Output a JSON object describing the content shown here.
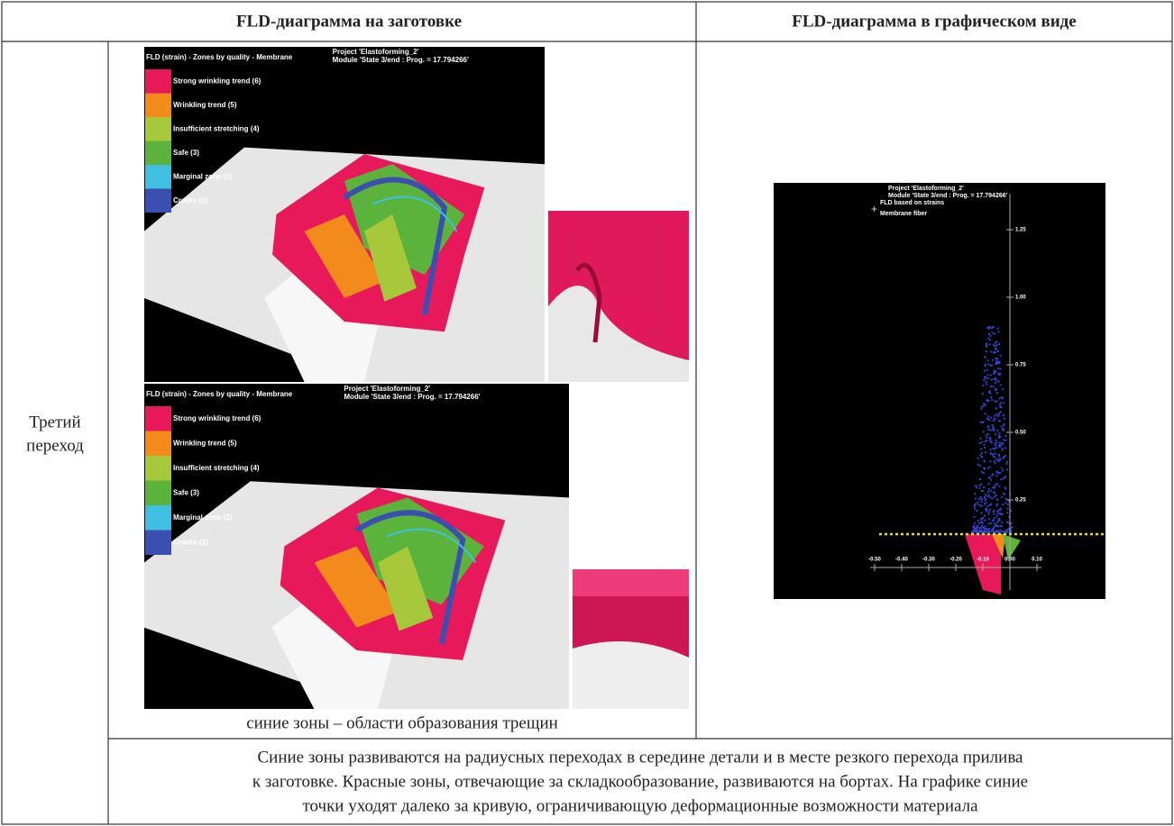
{
  "table": {
    "headers": [
      "FLD-диаграмма на заготовке",
      "FLD-диаграмма в графическом виде"
    ],
    "row_label": [
      "Третий",
      "переход"
    ],
    "caption": "синие зоны – области образования трещин",
    "note": [
      "Синие зоны развиваются на радиусных переходах в середине детали и в месте резкого перехода прилива",
      "к заготовке. Красные зоны, отвечающие за складкообразование, развиваются на бортах. На графике синие",
      "точки уходят далеко за кривую, ограничивающую деформационные возможности материала"
    ]
  },
  "render": {
    "title": "FLD (strain) - Zones by quality - Membrane",
    "project": "Project 'Elastoforming_2'",
    "module": "Module 'State 3/end : Prog. = 17.794266'",
    "legend": [
      {
        "label": "Strong wrinkling trend (6)",
        "color": "#e8195a"
      },
      {
        "label": "Wrinkling trend (5)",
        "color": "#f28a1c"
      },
      {
        "label": "Insufficient stretching (4)",
        "color": "#a6c83a"
      },
      {
        "label": "Safe (3)",
        "color": "#5bb33c"
      },
      {
        "label": "Marginal zone (2)",
        "color": "#3fc0e0"
      },
      {
        "label": "Cracks (1)",
        "color": "#3a4fb0"
      }
    ]
  },
  "fld_plot": {
    "project": "Project 'Elastoforming_2'",
    "module": "Module 'State 3/end : Prog. = 17.794266'",
    "subtitle": "FLD based on strains",
    "fiber": "Membrane fiber",
    "yticks": [
      {
        "value": 0.25,
        "label": "0.25"
      },
      {
        "value": 0.5,
        "label": "0.50"
      },
      {
        "value": 0.75,
        "label": "0.75"
      },
      {
        "value": 1,
        "label": "1.00"
      },
      {
        "value": 1.25,
        "label": "1.25"
      }
    ],
    "xticks": [
      {
        "value": -0.5,
        "label": "-0.50"
      },
      {
        "value": -0.4,
        "label": "-0.40"
      },
      {
        "value": -0.3,
        "label": "-0.30"
      },
      {
        "value": -0.2,
        "label": "-0.20"
      },
      {
        "value": -0.1,
        "label": "-0.10"
      },
      {
        "value": 0,
        "label": "0.00"
      },
      {
        "value": 0.1,
        "label": "0.10"
      }
    ]
  }
}
